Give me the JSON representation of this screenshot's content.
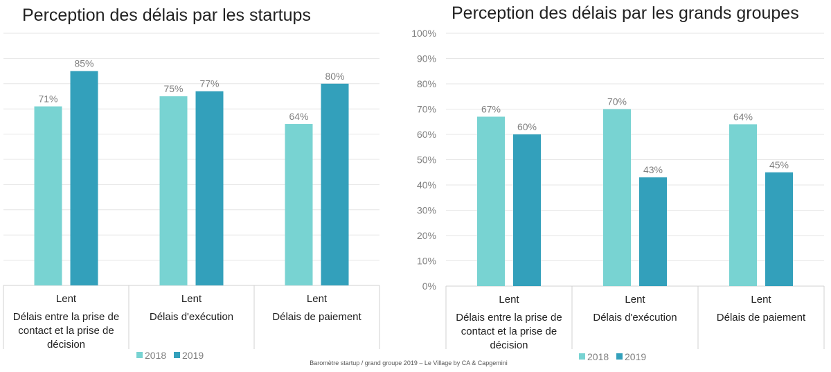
{
  "chart_data": [
    {
      "type": "bar",
      "title": "Perception des délais par les startups",
      "row_label": "Lent",
      "categories": [
        [
          "Délais entre la prise de",
          "contact et la prise de",
          "décision"
        ],
        [
          "Délais d'exécution"
        ],
        [
          "Délais de paiement"
        ]
      ],
      "series": [
        {
          "name": "2018",
          "values": [
            71,
            75,
            64
          ],
          "labels": [
            "71%",
            "75%",
            "64%"
          ],
          "color": "#78d3d2"
        },
        {
          "name": "2019",
          "values": [
            85,
            77,
            80
          ],
          "labels": [
            "85%",
            "77%",
            "80%"
          ],
          "color": "#33a0bb"
        }
      ],
      "ylim": [
        0,
        100
      ],
      "yticks": [],
      "grid": true,
      "legend": "bottom"
    },
    {
      "type": "bar",
      "title": "Perception des délais par les grands groupes",
      "row_label": "Lent",
      "categories": [
        [
          "Délais entre la prise de",
          "contact et la prise de",
          "décision"
        ],
        [
          "Délais d'exécution"
        ],
        [
          "Délais de paiement"
        ]
      ],
      "series": [
        {
          "name": "2018",
          "values": [
            67,
            70,
            64
          ],
          "labels": [
            "67%",
            "70%",
            "64%"
          ],
          "color": "#78d3d2"
        },
        {
          "name": "2019",
          "values": [
            60,
            43,
            45
          ],
          "labels": [
            "60%",
            "43%",
            "45%"
          ],
          "color": "#33a0bb"
        }
      ],
      "ylim": [
        0,
        100
      ],
      "yticks": [
        "0%",
        "10%",
        "20%",
        "30%",
        "40%",
        "50%",
        "60%",
        "70%",
        "80%",
        "90%",
        "100%"
      ],
      "grid": true,
      "legend": "bottom"
    }
  ],
  "footer": "Baromètre startup / grand groupe 2019 – Le Village by CA & Capgemini"
}
